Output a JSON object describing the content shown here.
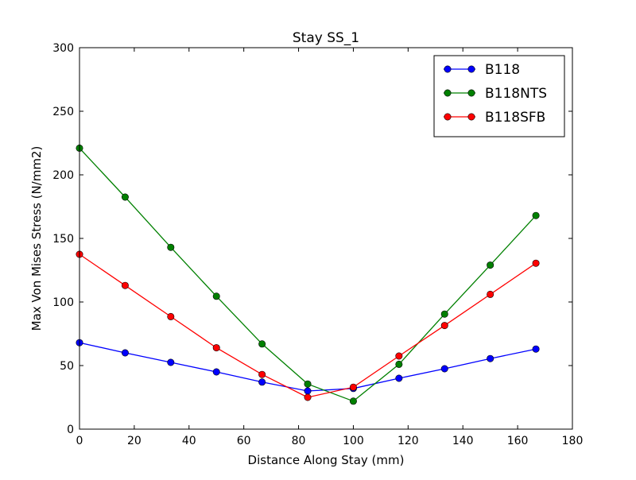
{
  "chart_data": {
    "type": "line",
    "title": "Stay SS_1",
    "xlabel": "Distance Along Stay (mm)",
    "ylabel": "Max Von Mises Stress (N/mm2)",
    "xlim": [
      0,
      180
    ],
    "ylim": [
      0,
      300
    ],
    "xticks": [
      0,
      20,
      40,
      60,
      80,
      100,
      120,
      140,
      160,
      180
    ],
    "yticks": [
      0,
      50,
      100,
      150,
      200,
      250,
      300
    ],
    "grid": false,
    "legend_position": "top-right",
    "x": [
      0,
      16.67,
      33.33,
      50,
      66.67,
      83.33,
      100,
      116.67,
      133.33,
      150,
      166.67
    ],
    "series": [
      {
        "name": "B118",
        "color": "#0000ff",
        "values": [
          68,
          60,
          52.5,
          45,
          37,
          30,
          32,
          40,
          47.5,
          55.5,
          63
        ]
      },
      {
        "name": "B118NTS",
        "color": "#008000",
        "values": [
          221,
          182.5,
          143,
          104.5,
          67,
          35.5,
          22,
          51,
          90.5,
          129,
          168
        ]
      },
      {
        "name": "B118SFB",
        "color": "#ff0000",
        "values": [
          137.5,
          113,
          88.5,
          64,
          43,
          25,
          33,
          57.5,
          81.5,
          106,
          130.5
        ]
      }
    ]
  }
}
